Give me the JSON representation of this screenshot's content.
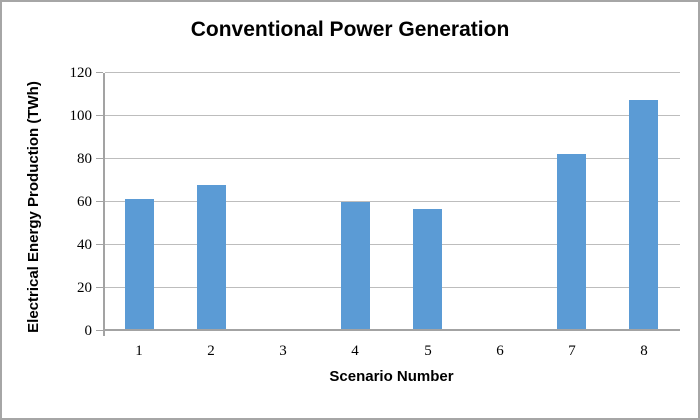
{
  "chart_data": {
    "type": "bar",
    "title": "Conventional Power Generation",
    "xlabel": "Scenario Number",
    "ylabel": "Electrical Energy Production (TWh)",
    "categories": [
      "1",
      "2",
      "3",
      "4",
      "5",
      "6",
      "7",
      "8"
    ],
    "values": [
      60.5,
      67,
      0,
      59,
      56,
      0,
      81.5,
      106.5
    ],
    "ylim": [
      0,
      120
    ],
    "yticks": [
      0,
      20,
      40,
      60,
      80,
      100,
      120
    ],
    "grid": true,
    "legend": "none",
    "bar_color": "#5B9BD5",
    "gridline_color": "#bdbdbd",
    "axis_color": "#a3a3a3",
    "frame_border_color": "#a6a6a6",
    "text_color": "#000000"
  }
}
